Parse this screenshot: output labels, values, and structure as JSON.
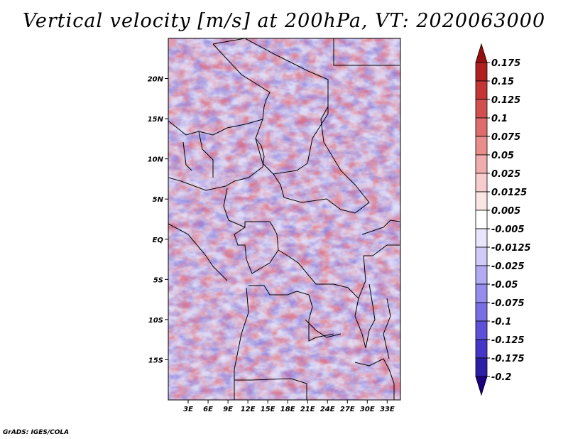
{
  "title": "Vertical velocity [m/s] at 200hPa, VT: 2020063000",
  "credit": "GrADS: IGES/COLA",
  "colors": {
    "ramp": [
      "#1a0080",
      "#2d1ea8",
      "#4636c8",
      "#5e50d8",
      "#7a6ee4",
      "#958cec",
      "#b2abf2",
      "#cfcaf7",
      "#e9e6fc",
      "#ffffff",
      "#fbe6e6",
      "#f6cccc",
      "#f0adad",
      "#e88c8c",
      "#de6c6c",
      "#d24f4f",
      "#c43636",
      "#b01e1e",
      "#960f0f"
    ]
  },
  "chart_data": {
    "type": "heatmap",
    "title": "Vertical velocity [m/s] at 200hPa, VT: 2020063000",
    "variable": "Vertical velocity",
    "units": "m/s",
    "level": "200hPa",
    "valid_time": "2020063000",
    "x_range": [
      0,
      35
    ],
    "y_range": [
      -20,
      25
    ],
    "x_ticks": [
      {
        "value": 3,
        "label": "3E"
      },
      {
        "value": 6,
        "label": "6E"
      },
      {
        "value": 9,
        "label": "9E"
      },
      {
        "value": 12,
        "label": "12E"
      },
      {
        "value": 15,
        "label": "15E"
      },
      {
        "value": 18,
        "label": "18E"
      },
      {
        "value": 21,
        "label": "21E"
      },
      {
        "value": 24,
        "label": "24E"
      },
      {
        "value": 27,
        "label": "27E"
      },
      {
        "value": 30,
        "label": "30E"
      },
      {
        "value": 33,
        "label": "33E"
      }
    ],
    "y_ticks": [
      {
        "value": 20,
        "label": "20N"
      },
      {
        "value": 15,
        "label": "15N"
      },
      {
        "value": 10,
        "label": "10N"
      },
      {
        "value": 5,
        "label": "5N"
      },
      {
        "value": 0,
        "label": "EQ"
      },
      {
        "value": -5,
        "label": "5S"
      },
      {
        "value": -10,
        "label": "10S"
      },
      {
        "value": -15,
        "label": "15S"
      }
    ],
    "colorbar": {
      "levels": [
        "0.175",
        "0.15",
        "0.125",
        "0.1",
        "0.075",
        "0.05",
        "0.025",
        "0.0125",
        "0.005",
        "-0.005",
        "-0.0125",
        "-0.025",
        "-0.05",
        "-0.075",
        "-0.1",
        "-0.125",
        "-0.175",
        "-0.2"
      ],
      "triangles": "both"
    }
  }
}
